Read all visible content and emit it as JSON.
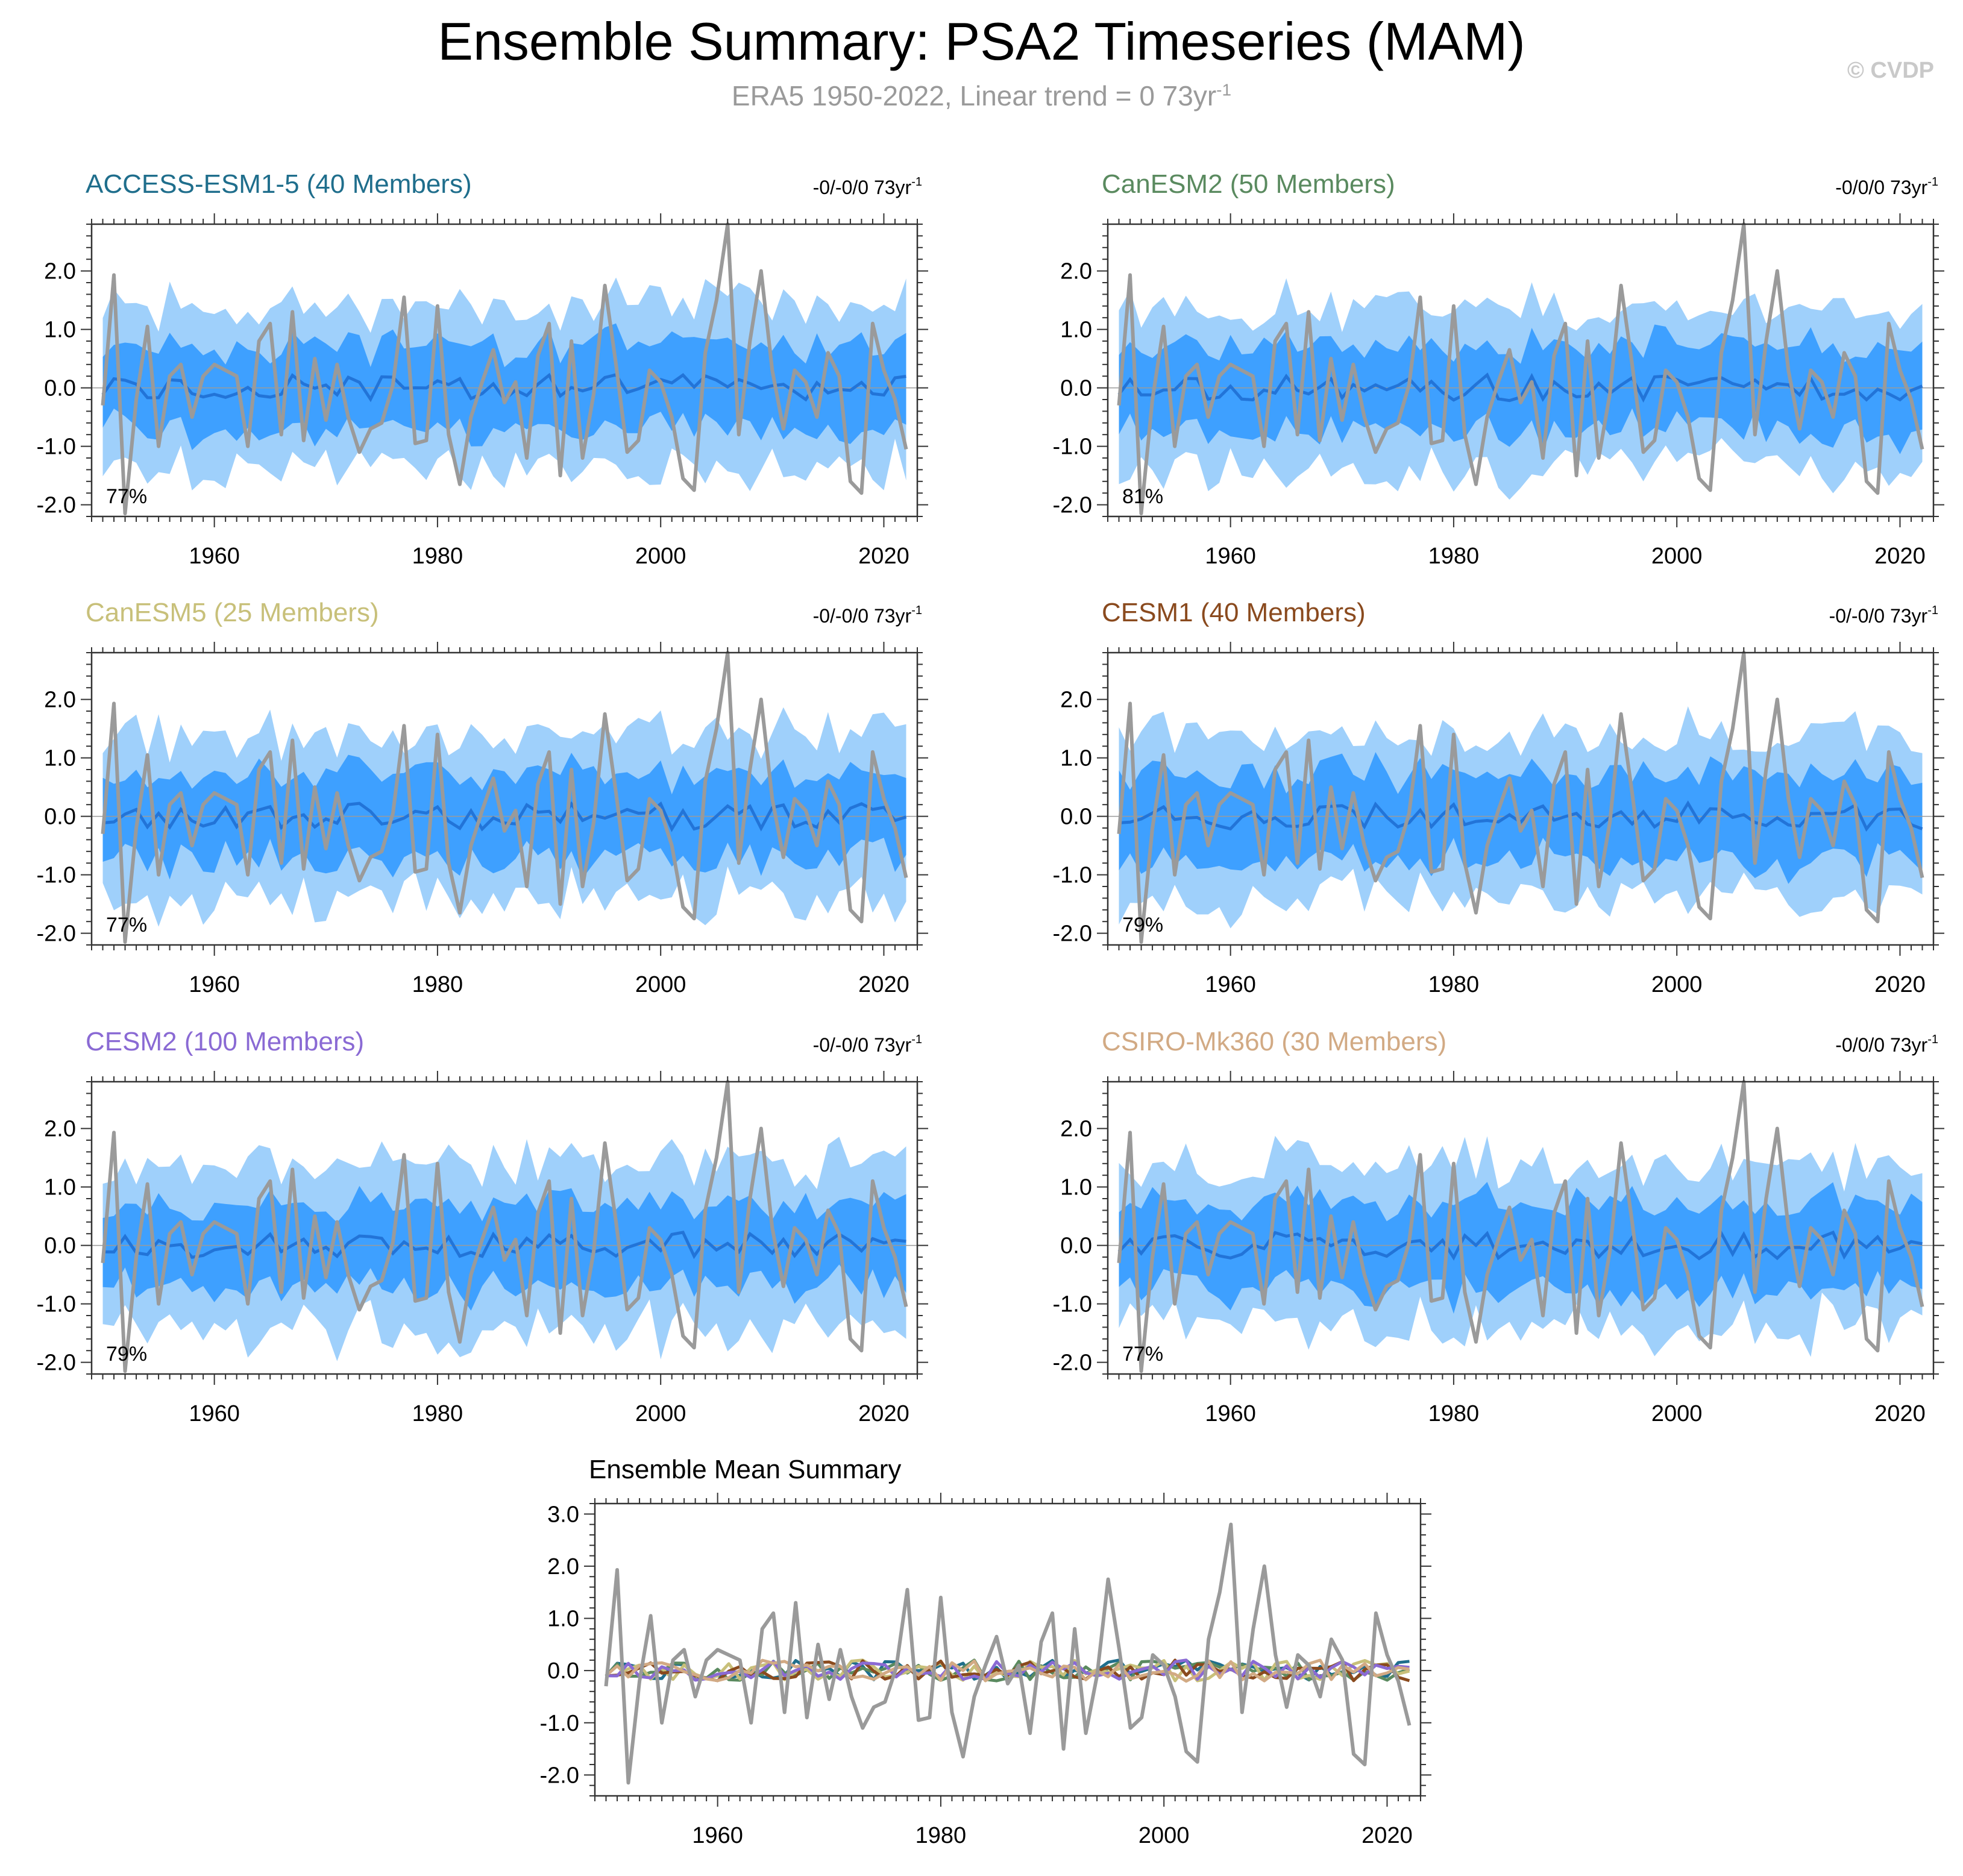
{
  "title": "Ensemble Summary: PSA2 Timeseries (MAM)",
  "subtitle": {
    "text": "ERA5 1950-2022, Linear trend = 0 73yr",
    "sup": "-1"
  },
  "watermark": "© CVDP",
  "colors": {
    "obs": "#9a9a9a",
    "outer_band": "#9fd0fb",
    "inner_band": "#3ea0ff",
    "ens_mean": "#2274d8"
  },
  "chart_data": [
    {
      "type": "area",
      "panel": "ACCESS-ESM1-5",
      "title": "ACCESS-ESM1-5 (40 Members)",
      "title_color": "#1f6e8c",
      "trend_text": "-0/-0/0 73yr",
      "trend_sup": "-1",
      "pct_label": "77%",
      "pct_value": 77,
      "seed": 11,
      "xlim": [
        1949,
        2023
      ],
      "ylim": [
        -2.2,
        2.8
      ],
      "x_ticks": [
        1960,
        1980,
        2000,
        2020
      ],
      "y_ticks": [
        -2.0,
        -1.0,
        0.0,
        1.0,
        2.0
      ],
      "y_tick_labels": [
        "-2.0",
        "-1.0",
        "0.0",
        "1.0",
        "2.0"
      ]
    },
    {
      "type": "area",
      "panel": "CanESM2",
      "title": "CanESM2 (50 Members)",
      "title_color": "#5a8a5f",
      "trend_text": "-0/0/0 73yr",
      "trend_sup": "-1",
      "pct_label": "81%",
      "pct_value": 81,
      "seed": 23,
      "xlim": [
        1949,
        2023
      ],
      "ylim": [
        -2.2,
        2.8
      ],
      "x_ticks": [
        1960,
        1980,
        2000,
        2020
      ],
      "y_ticks": [
        -2.0,
        -1.0,
        0.0,
        1.0,
        2.0
      ],
      "y_tick_labels": [
        "-2.0",
        "-1.0",
        "0.0",
        "1.0",
        "2.0"
      ]
    },
    {
      "type": "area",
      "panel": "CanESM5",
      "title": "CanESM5 (25 Members)",
      "title_color": "#c8c07a",
      "trend_text": "-0/-0/0 73yr",
      "trend_sup": "-1",
      "pct_label": "77%",
      "pct_value": 77,
      "seed": 37,
      "xlim": [
        1949,
        2023
      ],
      "ylim": [
        -2.2,
        2.8
      ],
      "x_ticks": [
        1960,
        1980,
        2000,
        2020
      ],
      "y_ticks": [
        -2.0,
        -1.0,
        0.0,
        1.0,
        2.0
      ],
      "y_tick_labels": [
        "-2.0",
        "-1.0",
        "0.0",
        "1.0",
        "2.0"
      ]
    },
    {
      "type": "area",
      "panel": "CESM1",
      "title": "CESM1 (40 Members)",
      "title_color": "#8a4a1e",
      "trend_text": "-0/-0/0 73yr",
      "trend_sup": "-1",
      "pct_label": "79%",
      "pct_value": 79,
      "seed": 41,
      "xlim": [
        1949,
        2023
      ],
      "ylim": [
        -2.2,
        2.8
      ],
      "x_ticks": [
        1960,
        1980,
        2000,
        2020
      ],
      "y_ticks": [
        -2.0,
        -1.0,
        0.0,
        1.0,
        2.0
      ],
      "y_tick_labels": [
        "-2.0",
        "-1.0",
        "0.0",
        "1.0",
        "2.0"
      ]
    },
    {
      "type": "area",
      "panel": "CESM2",
      "title": "CESM2 (100 Members)",
      "title_color": "#8a6ad4",
      "trend_text": "-0/-0/0 73yr",
      "trend_sup": "-1",
      "pct_label": "79%",
      "pct_value": 79,
      "seed": 53,
      "xlim": [
        1949,
        2023
      ],
      "ylim": [
        -2.2,
        2.8
      ],
      "x_ticks": [
        1960,
        1980,
        2000,
        2020
      ],
      "y_ticks": [
        -2.0,
        -1.0,
        0.0,
        1.0,
        2.0
      ],
      "y_tick_labels": [
        "-2.0",
        "-1.0",
        "0.0",
        "1.0",
        "2.0"
      ]
    },
    {
      "type": "area",
      "panel": "CSIRO-Mk360",
      "title": "CSIRO-Mk360 (30 Members)",
      "title_color": "#d2aa84",
      "trend_text": "-0/0/0 73yr",
      "trend_sup": "-1",
      "pct_label": "77%",
      "pct_value": 77,
      "seed": 67,
      "xlim": [
        1949,
        2023
      ],
      "ylim": [
        -2.2,
        2.8
      ],
      "x_ticks": [
        1960,
        1980,
        2000,
        2020
      ],
      "y_ticks": [
        -2.0,
        -1.0,
        0.0,
        1.0,
        2.0
      ],
      "y_tick_labels": [
        "-2.0",
        "-1.0",
        "0.0",
        "1.0",
        "2.0"
      ]
    },
    {
      "type": "line",
      "panel": "ensemble-mean-summary",
      "title": "Ensemble Mean Summary",
      "title_color": "#000000",
      "xlim": [
        1949,
        2023
      ],
      "ylim": [
        -2.4,
        3.2
      ],
      "x_ticks": [
        1960,
        1980,
        2000,
        2020
      ],
      "y_ticks": [
        -2.0,
        -1.0,
        0.0,
        1.0,
        2.0,
        3.0
      ],
      "y_tick_labels": [
        "-2.0",
        "-1.0",
        "0.0",
        "1.0",
        "2.0",
        "3.0"
      ],
      "series_colors": [
        "#1f6e8c",
        "#5a8a5f",
        "#c8c07a",
        "#8a4a1e",
        "#8a6ad4",
        "#d2aa84"
      ]
    }
  ],
  "observations": {
    "name": "ERA5",
    "x_start": 1950,
    "values": [
      -0.3,
      1.93,
      -2.15,
      -0.2,
      1.05,
      -1.0,
      0.2,
      0.4,
      -0.5,
      0.2,
      0.4,
      0.3,
      0.2,
      -1.0,
      0.8,
      1.1,
      -0.8,
      1.3,
      -0.9,
      0.5,
      -0.55,
      0.4,
      -0.5,
      -1.1,
      -0.7,
      -0.6,
      0.05,
      1.55,
      -0.95,
      -0.9,
      1.4,
      -0.8,
      -1.65,
      -0.5,
      0.1,
      0.65,
      -0.25,
      0.1,
      -1.2,
      0.55,
      1.1,
      -1.5,
      0.8,
      -1.2,
      -0.1,
      1.75,
      0.4,
      -1.1,
      -0.9,
      0.3,
      0.1,
      -0.5,
      -1.55,
      -1.75,
      0.6,
      1.5,
      2.8,
      -0.8,
      0.8,
      2.0,
      0.3,
      -0.7,
      0.3,
      0.1,
      -0.5,
      0.6,
      0.2,
      -1.6,
      -1.8,
      1.1,
      0.3,
      -0.2,
      -1.05
    ]
  }
}
